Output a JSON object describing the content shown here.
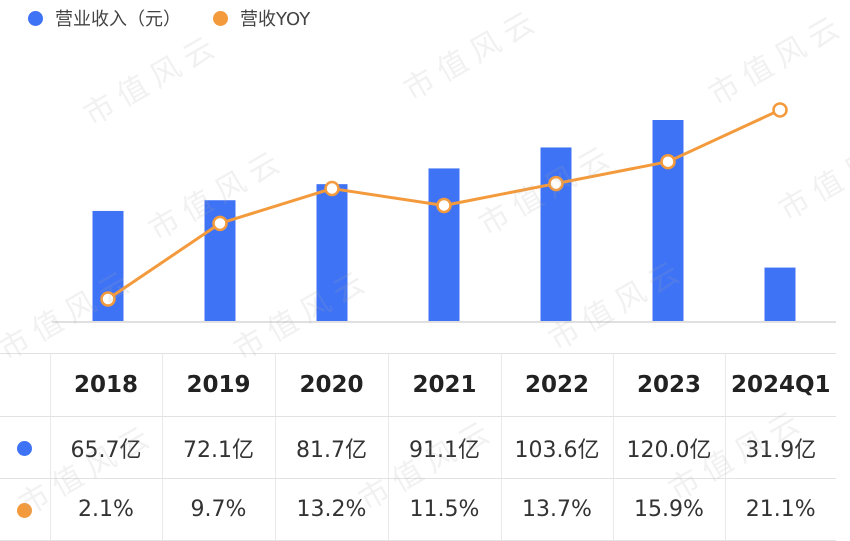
{
  "legend": [
    {
      "label": "营业收入（元）",
      "color": "#3f73f6"
    },
    {
      "label": "营收YOY",
      "color": "#f39a3c"
    }
  ],
  "watermark_text": "市值风云",
  "chart_data": {
    "type": "bar",
    "categories": [
      "2018",
      "2019",
      "2020",
      "2021",
      "2022",
      "2023",
      "2024Q1"
    ],
    "series": [
      {
        "name": "营业收入（元）",
        "type": "bar",
        "values": [
          65.7,
          72.1,
          81.7,
          91.1,
          103.6,
          120.0,
          31.9
        ],
        "color": "#3f73f6"
      },
      {
        "name": "营收YOY",
        "type": "line",
        "values": [
          2.1,
          9.7,
          13.2,
          11.5,
          13.7,
          15.9,
          21.1
        ],
        "color": "#f39a3c"
      }
    ],
    "grid": false,
    "legend_position": "top-left"
  },
  "table": {
    "headers": [
      "2018",
      "2019",
      "2020",
      "2021",
      "2022",
      "2023",
      "2024Q1"
    ],
    "revenue_labels": [
      "65.7亿",
      "72.1亿",
      "81.7亿",
      "91.1亿",
      "103.6亿",
      "120.0亿",
      "31.9亿"
    ],
    "yoy_labels": [
      "2.1%",
      "9.7%",
      "13.2%",
      "11.5%",
      "13.7%",
      "15.9%",
      "21.1%"
    ]
  }
}
